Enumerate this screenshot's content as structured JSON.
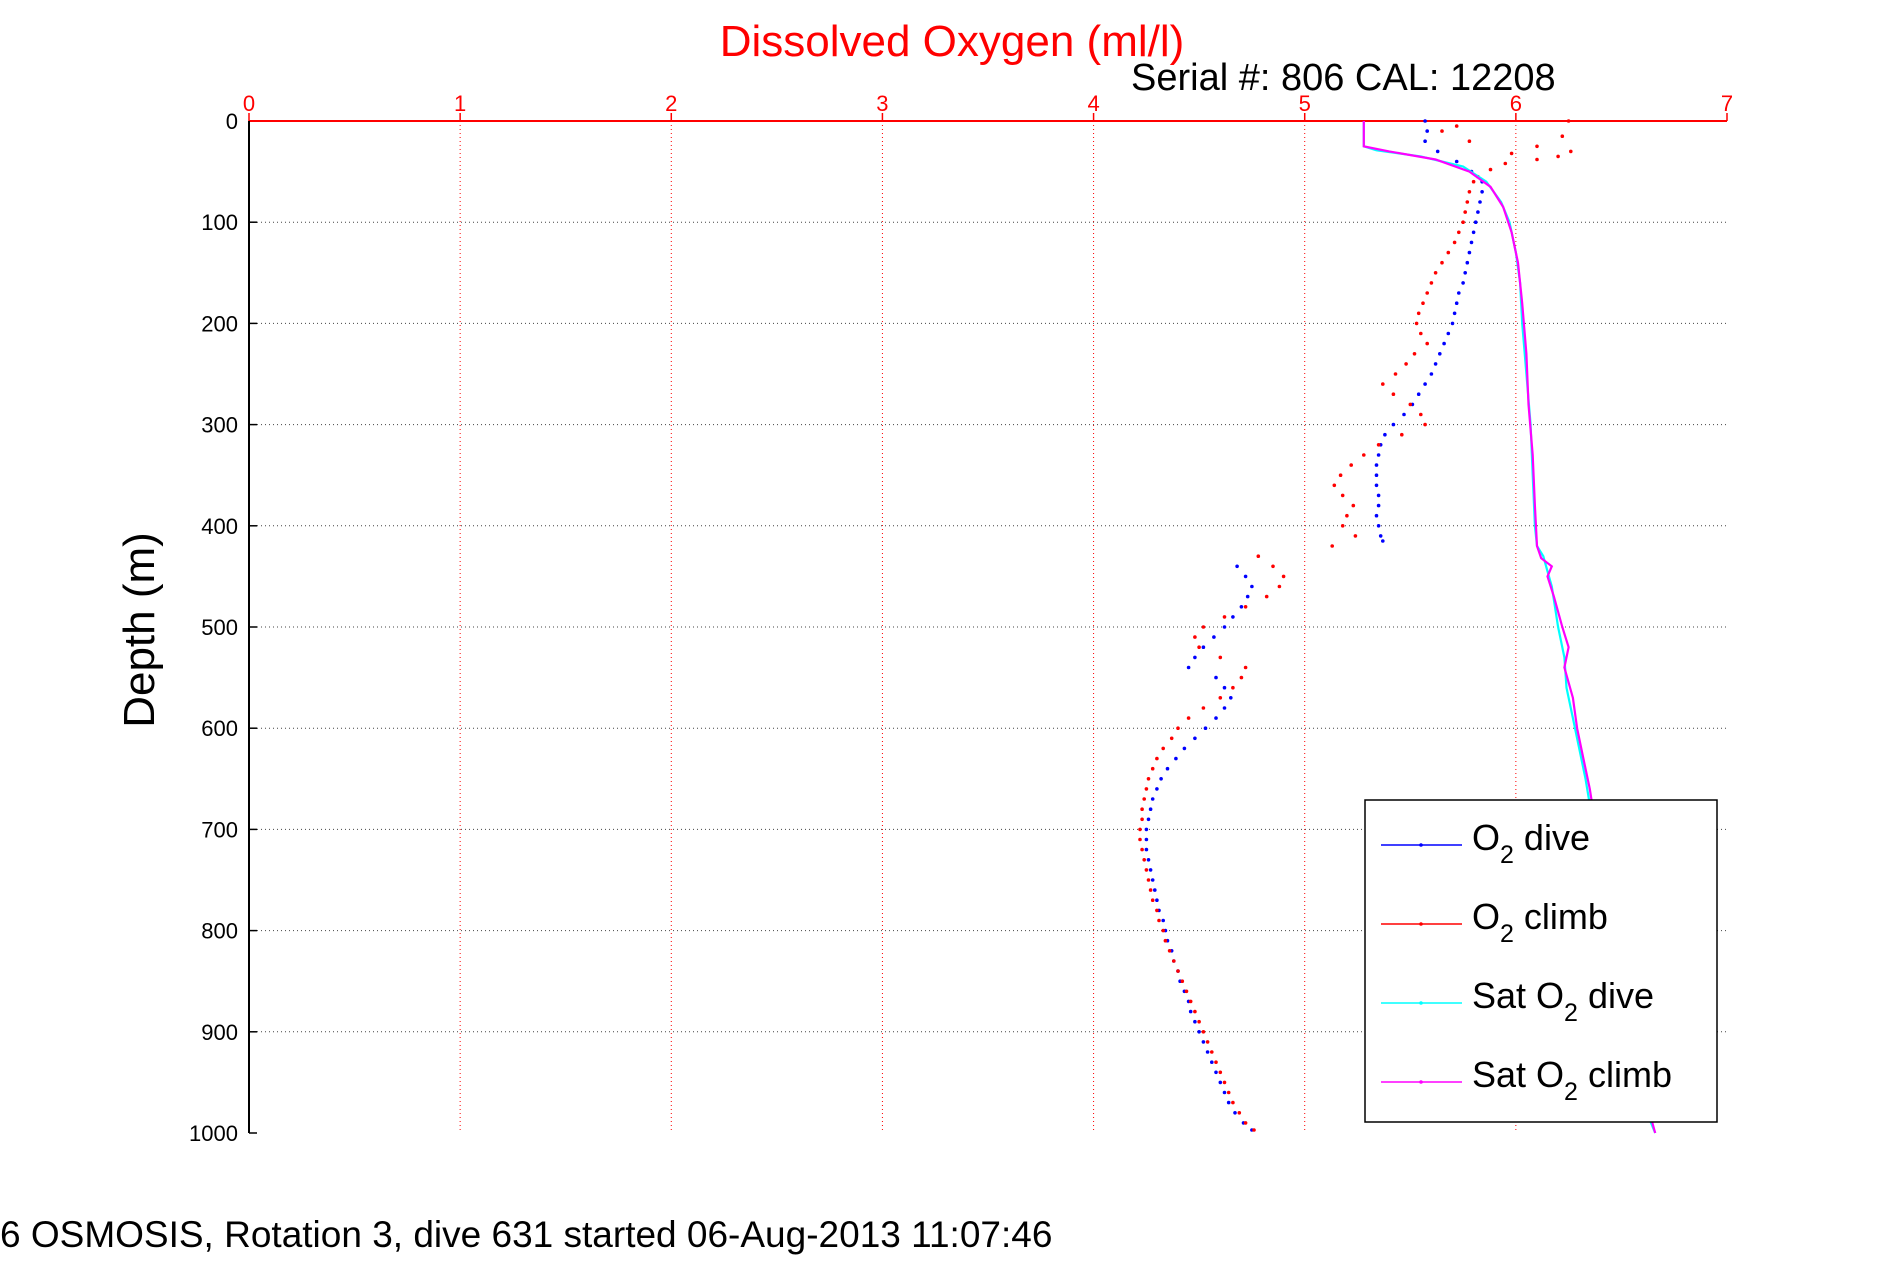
{
  "chart_data": {
    "type": "scatter",
    "title": "Dissolved Oxygen (ml/l)",
    "subtitle": "Serial #: 806  CAL: 12208",
    "xlabel": "",
    "ylabel": "Depth (m)",
    "caption": "6 OSMOSIS, Rotation 3, dive 631 started 06-Aug-2013 11:07:46",
    "xlim": [
      0,
      7
    ],
    "ylim": [
      0,
      1000
    ],
    "y_reversed": true,
    "x_axis_position": "top",
    "xticks": [
      "0",
      "1",
      "2",
      "3",
      "4",
      "5",
      "6",
      "7"
    ],
    "yticks": [
      "0",
      "100",
      "200",
      "300",
      "400",
      "500",
      "600",
      "700",
      "800",
      "900",
      "1000"
    ],
    "grid": true,
    "legend_position": "bottom-right",
    "series": [
      {
        "name": "O2 dive",
        "legend_main": "O",
        "legend_sub": "2",
        "legend_rest": " dive",
        "color": "#0000ff",
        "style": "dots",
        "points": [
          [
            5.57,
            0
          ],
          [
            5.58,
            10
          ],
          [
            5.57,
            20
          ],
          [
            5.63,
            30
          ],
          [
            5.72,
            40
          ],
          [
            5.79,
            50
          ],
          [
            5.84,
            60
          ],
          [
            5.84,
            70
          ],
          [
            5.83,
            80
          ],
          [
            5.82,
            90
          ],
          [
            5.81,
            100
          ],
          [
            5.8,
            110
          ],
          [
            5.79,
            120
          ],
          [
            5.78,
            130
          ],
          [
            5.77,
            140
          ],
          [
            5.76,
            150
          ],
          [
            5.75,
            160
          ],
          [
            5.73,
            170
          ],
          [
            5.72,
            180
          ],
          [
            5.71,
            190
          ],
          [
            5.7,
            200
          ],
          [
            5.68,
            210
          ],
          [
            5.66,
            220
          ],
          [
            5.64,
            230
          ],
          [
            5.62,
            240
          ],
          [
            5.6,
            250
          ],
          [
            5.57,
            260
          ],
          [
            5.54,
            270
          ],
          [
            5.51,
            280
          ],
          [
            5.47,
            290
          ],
          [
            5.42,
            300
          ],
          [
            5.38,
            310
          ],
          [
            5.36,
            320
          ],
          [
            5.35,
            330
          ],
          [
            5.34,
            340
          ],
          [
            5.34,
            350
          ],
          [
            5.34,
            360
          ],
          [
            5.35,
            370
          ],
          [
            5.35,
            380
          ],
          [
            5.34,
            390
          ],
          [
            5.35,
            400
          ],
          [
            5.36,
            410
          ],
          [
            5.37,
            415
          ],
          [
            4.68,
            440
          ],
          [
            4.72,
            450
          ],
          [
            4.75,
            460
          ],
          [
            4.73,
            470
          ],
          [
            4.7,
            480
          ],
          [
            4.66,
            490
          ],
          [
            4.62,
            500
          ],
          [
            4.57,
            510
          ],
          [
            4.52,
            520
          ],
          [
            4.48,
            530
          ],
          [
            4.45,
            540
          ],
          [
            4.58,
            550
          ],
          [
            4.62,
            560
          ],
          [
            4.65,
            570
          ],
          [
            4.62,
            580
          ],
          [
            4.58,
            590
          ],
          [
            4.53,
            600
          ],
          [
            4.48,
            610
          ],
          [
            4.43,
            620
          ],
          [
            4.39,
            630
          ],
          [
            4.35,
            640
          ],
          [
            4.32,
            650
          ],
          [
            4.3,
            660
          ],
          [
            4.28,
            670
          ],
          [
            4.27,
            680
          ],
          [
            4.26,
            690
          ],
          [
            4.25,
            700
          ],
          [
            4.25,
            710
          ],
          [
            4.25,
            720
          ],
          [
            4.26,
            730
          ],
          [
            4.27,
            740
          ],
          [
            4.28,
            750
          ],
          [
            4.29,
            760
          ],
          [
            4.3,
            770
          ],
          [
            4.31,
            780
          ],
          [
            4.33,
            790
          ],
          [
            4.34,
            800
          ],
          [
            4.35,
            810
          ],
          [
            4.37,
            820
          ],
          [
            4.38,
            830
          ],
          [
            4.4,
            840
          ],
          [
            4.41,
            850
          ],
          [
            4.43,
            860
          ],
          [
            4.45,
            870
          ],
          [
            4.46,
            880
          ],
          [
            4.48,
            890
          ],
          [
            4.5,
            900
          ],
          [
            4.52,
            910
          ],
          [
            4.54,
            920
          ],
          [
            4.56,
            930
          ],
          [
            4.58,
            940
          ],
          [
            4.6,
            950
          ],
          [
            4.62,
            960
          ],
          [
            4.64,
            970
          ],
          [
            4.67,
            980
          ],
          [
            4.71,
            990
          ],
          [
            4.75,
            997
          ]
        ]
      },
      {
        "name": "O2 climb",
        "legend_main": "O",
        "legend_sub": "2",
        "legend_rest": " climb",
        "color": "#ff0000",
        "style": "dots",
        "points": [
          [
            6.25,
            0
          ],
          [
            5.72,
            5
          ],
          [
            5.65,
            10
          ],
          [
            6.22,
            15
          ],
          [
            5.78,
            20
          ],
          [
            6.1,
            25
          ],
          [
            6.26,
            30
          ],
          [
            5.98,
            32
          ],
          [
            6.2,
            35
          ],
          [
            6.1,
            38
          ],
          [
            5.95,
            42
          ],
          [
            5.88,
            48
          ],
          [
            5.82,
            55
          ],
          [
            5.8,
            60
          ],
          [
            5.78,
            70
          ],
          [
            5.77,
            80
          ],
          [
            5.76,
            90
          ],
          [
            5.75,
            100
          ],
          [
            5.73,
            110
          ],
          [
            5.71,
            120
          ],
          [
            5.68,
            130
          ],
          [
            5.65,
            140
          ],
          [
            5.62,
            150
          ],
          [
            5.6,
            160
          ],
          [
            5.58,
            170
          ],
          [
            5.56,
            180
          ],
          [
            5.54,
            190
          ],
          [
            5.53,
            200
          ],
          [
            5.55,
            210
          ],
          [
            5.58,
            220
          ],
          [
            5.52,
            230
          ],
          [
            5.48,
            240
          ],
          [
            5.43,
            250
          ],
          [
            5.37,
            260
          ],
          [
            5.42,
            270
          ],
          [
            5.5,
            280
          ],
          [
            5.55,
            290
          ],
          [
            5.57,
            300
          ],
          [
            5.46,
            310
          ],
          [
            5.35,
            320
          ],
          [
            5.28,
            330
          ],
          [
            5.22,
            340
          ],
          [
            5.17,
            350
          ],
          [
            5.14,
            360
          ],
          [
            5.18,
            370
          ],
          [
            5.23,
            380
          ],
          [
            5.2,
            390
          ],
          [
            5.18,
            400
          ],
          [
            5.24,
            410
          ],
          [
            5.13,
            420
          ],
          [
            4.78,
            430
          ],
          [
            4.85,
            440
          ],
          [
            4.9,
            450
          ],
          [
            4.88,
            460
          ],
          [
            4.82,
            470
          ],
          [
            4.72,
            480
          ],
          [
            4.62,
            490
          ],
          [
            4.52,
            500
          ],
          [
            4.48,
            510
          ],
          [
            4.5,
            520
          ],
          [
            4.6,
            530
          ],
          [
            4.72,
            540
          ],
          [
            4.7,
            550
          ],
          [
            4.66,
            560
          ],
          [
            4.6,
            570
          ],
          [
            4.52,
            580
          ],
          [
            4.45,
            590
          ],
          [
            4.4,
            600
          ],
          [
            4.37,
            610
          ],
          [
            4.33,
            620
          ],
          [
            4.3,
            630
          ],
          [
            4.28,
            640
          ],
          [
            4.26,
            650
          ],
          [
            4.25,
            660
          ],
          [
            4.24,
            670
          ],
          [
            4.23,
            680
          ],
          [
            4.23,
            690
          ],
          [
            4.22,
            700
          ],
          [
            4.22,
            710
          ],
          [
            4.23,
            720
          ],
          [
            4.24,
            730
          ],
          [
            4.25,
            740
          ],
          [
            4.26,
            750
          ],
          [
            4.27,
            760
          ],
          [
            4.28,
            770
          ],
          [
            4.3,
            780
          ],
          [
            4.31,
            790
          ],
          [
            4.33,
            800
          ],
          [
            4.34,
            810
          ],
          [
            4.36,
            820
          ],
          [
            4.38,
            830
          ],
          [
            4.4,
            840
          ],
          [
            4.42,
            850
          ],
          [
            4.44,
            860
          ],
          [
            4.46,
            870
          ],
          [
            4.48,
            880
          ],
          [
            4.5,
            890
          ],
          [
            4.52,
            900
          ],
          [
            4.54,
            910
          ],
          [
            4.56,
            920
          ],
          [
            4.58,
            930
          ],
          [
            4.6,
            940
          ],
          [
            4.62,
            950
          ],
          [
            4.64,
            960
          ],
          [
            4.66,
            970
          ],
          [
            4.69,
            980
          ],
          [
            4.72,
            990
          ],
          [
            4.76,
            997
          ]
        ]
      },
      {
        "name": "Sat O2 dive",
        "legend_main": "Sat O",
        "legend_sub": "2",
        "legend_rest": " dive",
        "color": "#00ffff",
        "style": "line",
        "points": [
          [
            5.28,
            0
          ],
          [
            5.28,
            25
          ],
          [
            5.34,
            29
          ],
          [
            5.55,
            35
          ],
          [
            5.75,
            45
          ],
          [
            5.86,
            60
          ],
          [
            5.93,
            80
          ],
          [
            5.97,
            100
          ],
          [
            6.0,
            130
          ],
          [
            6.02,
            160
          ],
          [
            6.03,
            200
          ],
          [
            6.05,
            250
          ],
          [
            6.07,
            300
          ],
          [
            6.08,
            350
          ],
          [
            6.09,
            400
          ],
          [
            6.1,
            420
          ],
          [
            6.13,
            430
          ],
          [
            6.15,
            445
          ],
          [
            6.17,
            460
          ],
          [
            6.2,
            500
          ],
          [
            6.23,
            530
          ],
          [
            6.24,
            560
          ],
          [
            6.27,
            590
          ],
          [
            6.3,
            620
          ],
          [
            6.33,
            650
          ],
          [
            6.37,
            700
          ],
          [
            6.4,
            750
          ],
          [
            6.45,
            800
          ],
          [
            6.5,
            850
          ],
          [
            6.55,
            900
          ],
          [
            6.62,
            980
          ],
          [
            6.66,
            1000
          ]
        ]
      },
      {
        "name": "Sat O2 climb",
        "legend_main": "Sat O",
        "legend_sub": "2",
        "legend_rest": " climb",
        "color": "#ff00ff",
        "style": "line",
        "points": [
          [
            5.28,
            0
          ],
          [
            5.28,
            25
          ],
          [
            5.4,
            30
          ],
          [
            5.62,
            38
          ],
          [
            5.78,
            50
          ],
          [
            5.88,
            65
          ],
          [
            5.94,
            85
          ],
          [
            5.98,
            110
          ],
          [
            6.01,
            140
          ],
          [
            6.03,
            180
          ],
          [
            6.05,
            230
          ],
          [
            6.06,
            280
          ],
          [
            6.08,
            330
          ],
          [
            6.09,
            380
          ],
          [
            6.1,
            420
          ],
          [
            6.12,
            432
          ],
          [
            6.17,
            440
          ],
          [
            6.15,
            450
          ],
          [
            6.18,
            470
          ],
          [
            6.22,
            500
          ],
          [
            6.25,
            520
          ],
          [
            6.23,
            540
          ],
          [
            6.27,
            570
          ],
          [
            6.29,
            600
          ],
          [
            6.32,
            630
          ],
          [
            6.35,
            660
          ],
          [
            6.38,
            700
          ],
          [
            6.42,
            760
          ],
          [
            6.47,
            820
          ],
          [
            6.52,
            880
          ],
          [
            6.58,
            940
          ],
          [
            6.66,
            1000
          ]
        ]
      }
    ]
  }
}
